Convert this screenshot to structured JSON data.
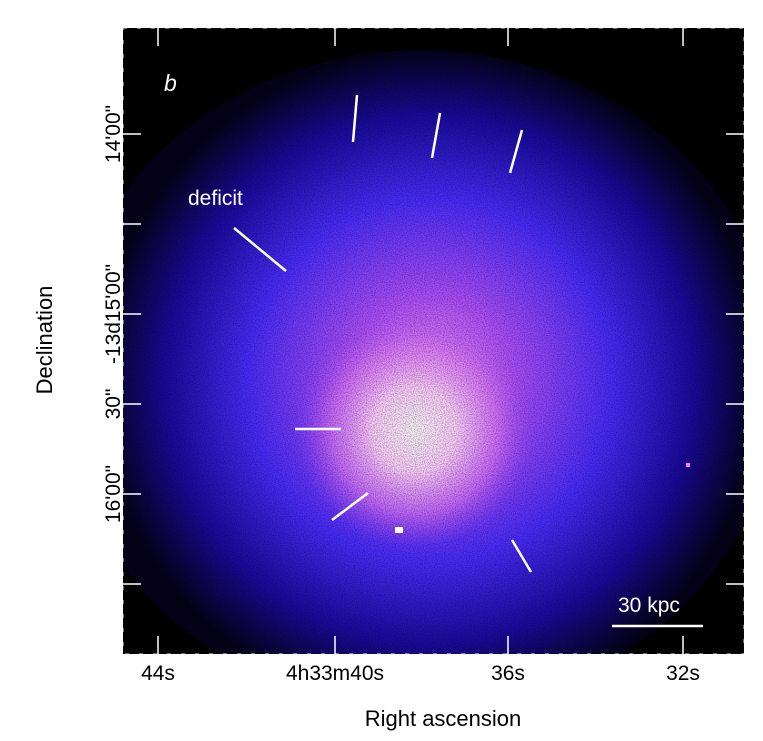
{
  "panel_label": "b",
  "annotations": {
    "deficit": "deficit",
    "scale_bar": "30 kpc"
  },
  "x_axis": {
    "title": "Right ascension",
    "ticks": [
      "44s",
      "4h33m40s",
      "36s",
      "32s"
    ]
  },
  "y_axis": {
    "title": "Declination",
    "ticks": [
      "14'00\"",
      "-13d15'00\"",
      "30\"",
      "16'00\""
    ]
  },
  "colors": {
    "background": "#000000",
    "halo": "#3a1cff",
    "core": "#ffe6ff",
    "annotation": "#ffffff"
  }
}
